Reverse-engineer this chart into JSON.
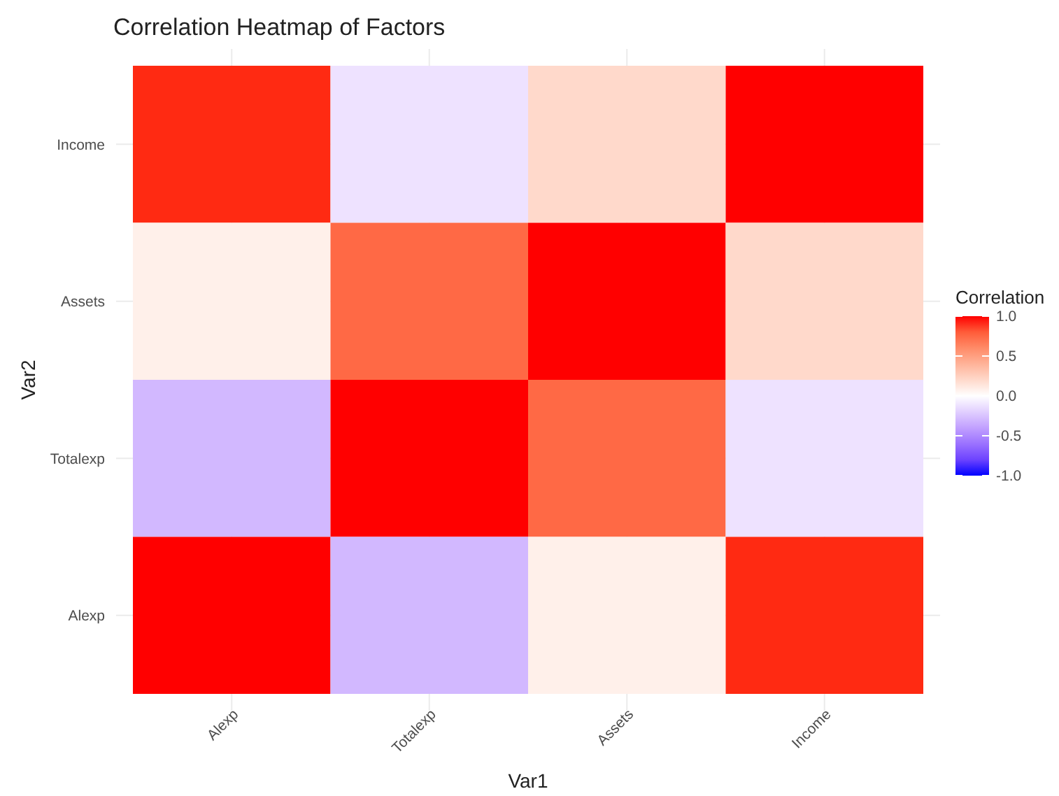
{
  "chart_data": {
    "type": "heatmap",
    "title": "Correlation Heatmap of Factors",
    "xlabel": "Var1",
    "ylabel": "Var2",
    "legend_title": "Correlation",
    "categories": [
      "Alexp",
      "Totalexp",
      "Assets",
      "Income"
    ],
    "y_categories": [
      "Income",
      "Assets",
      "Totalexp",
      "Alexp"
    ],
    "cells": [
      [
        0.95,
        -0.12,
        0.2,
        1
      ],
      [
        0.08,
        0.75,
        1,
        0.2
      ],
      [
        -0.3,
        1,
        0.75,
        -0.12
      ],
      [
        1,
        -0.3,
        0.08,
        0.95
      ]
    ],
    "clim": [
      -1,
      1
    ],
    "cticks": [
      {
        "value": 1,
        "label": "1.0"
      },
      {
        "value": 0.5,
        "label": "0.5"
      },
      {
        "value": 0,
        "label": "0.0"
      },
      {
        "value": -0.5,
        "label": "-0.5"
      },
      {
        "value": -1,
        "label": "-1.0"
      }
    ],
    "grid": true
  }
}
